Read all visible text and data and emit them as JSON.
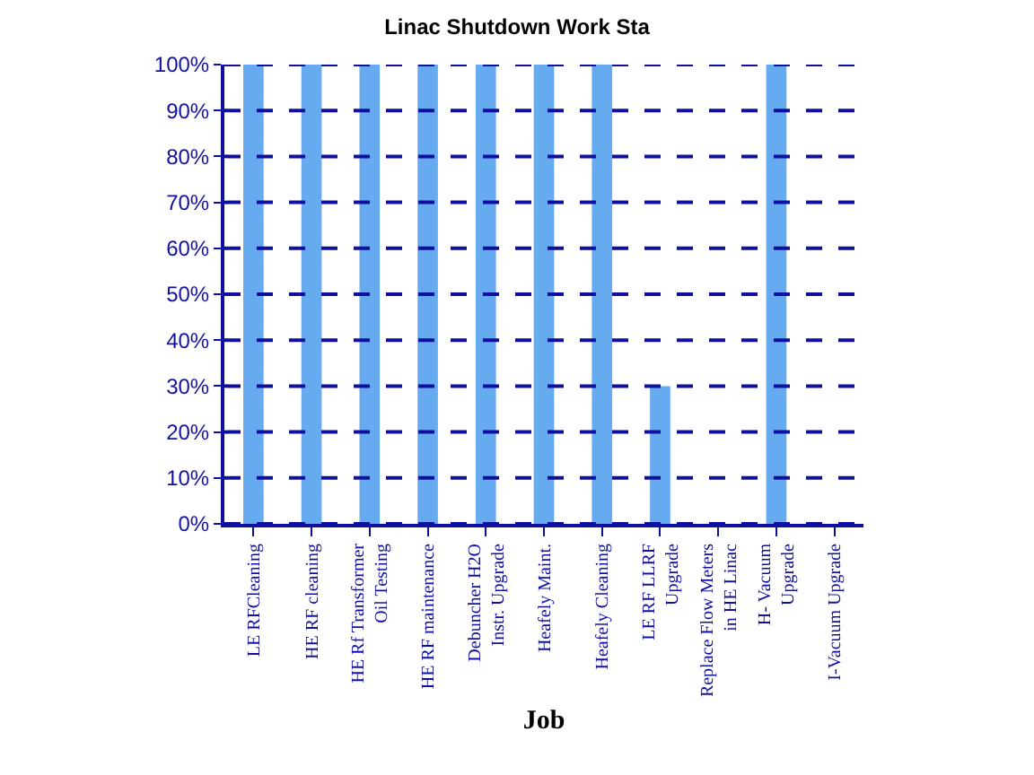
{
  "chart_data": {
    "type": "bar",
    "title": "Linac Shutdown Work Sta",
    "xlabel": "Job",
    "categories": [
      "LE RFCleaning",
      "HE RF cleaning",
      "HE Rf Transformer\nOil Testing",
      "HE RF maintenance",
      "Debuncher H2O\nInstr. Upgrade",
      "Heafely Maint.",
      "Heafely Cleaning",
      "LE RF LLRF\nUpgrade",
      "Replace Flow Meters\nin HE Linac",
      "H- Vacuum\nUpgrade",
      "I-Vacuum Upgrade"
    ],
    "values": [
      100,
      100,
      100,
      100,
      100,
      100,
      100,
      30,
      0,
      100,
      0
    ],
    "color": "#66aaf0",
    "ylim": [
      0,
      100
    ],
    "yticks": [
      {
        "value": 0,
        "label": "0%"
      },
      {
        "value": 10,
        "label": "10%"
      },
      {
        "value": 20,
        "label": "20%"
      },
      {
        "value": 30,
        "label": "30%"
      },
      {
        "value": 40,
        "label": "40%"
      },
      {
        "value": 50,
        "label": "50%"
      },
      {
        "value": 60,
        "label": "60%"
      },
      {
        "value": 70,
        "label": "70%"
      },
      {
        "value": 80,
        "label": "80%"
      },
      {
        "value": 90,
        "label": "90%"
      },
      {
        "value": 100,
        "label": "100%"
      }
    ],
    "grid": "y",
    "line_style": "dashed"
  }
}
